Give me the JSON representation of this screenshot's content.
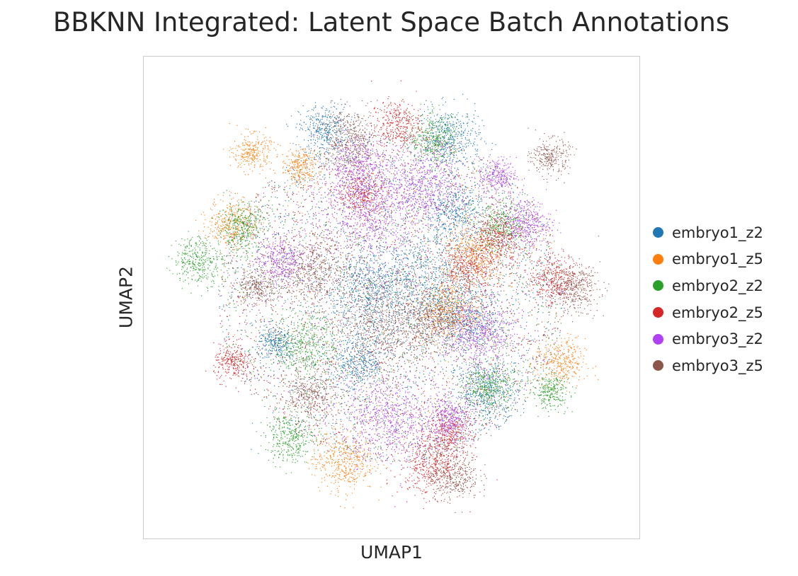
{
  "chart_data": {
    "type": "scatter",
    "title": "BBKNN Integrated: Latent Space Batch Annotations",
    "xlabel": "UMAP1",
    "ylabel": "UMAP2",
    "grid": false,
    "legend_position": "right",
    "series": [
      {
        "name": "embryo1_z2",
        "color": "#1f77b4",
        "clusters": [
          [
            0.36,
            0.86,
            0.04
          ],
          [
            0.62,
            0.84,
            0.05
          ],
          [
            0.56,
            0.53,
            0.09
          ],
          [
            0.66,
            0.45,
            0.05
          ],
          [
            0.26,
            0.4,
            0.03
          ],
          [
            0.43,
            0.36,
            0.05
          ],
          [
            0.7,
            0.3,
            0.05
          ],
          [
            0.45,
            0.52,
            0.07
          ],
          [
            0.63,
            0.68,
            0.05
          ]
        ]
      },
      {
        "name": "embryo1_z5",
        "color": "#ff7f0e",
        "clusters": [
          [
            0.21,
            0.81,
            0.03
          ],
          [
            0.31,
            0.78,
            0.03
          ],
          [
            0.17,
            0.66,
            0.04
          ],
          [
            0.85,
            0.36,
            0.04
          ],
          [
            0.62,
            0.47,
            0.05
          ],
          [
            0.4,
            0.15,
            0.05
          ],
          [
            0.67,
            0.59,
            0.05
          ]
        ]
      },
      {
        "name": "embryo2_z2",
        "color": "#2ca02c",
        "clusters": [
          [
            0.1,
            0.58,
            0.04
          ],
          [
            0.19,
            0.65,
            0.04
          ],
          [
            0.59,
            0.84,
            0.04
          ],
          [
            0.73,
            0.65,
            0.04
          ],
          [
            0.29,
            0.2,
            0.04
          ],
          [
            0.7,
            0.31,
            0.04
          ],
          [
            0.83,
            0.3,
            0.03
          ],
          [
            0.32,
            0.4,
            0.05
          ]
        ]
      },
      {
        "name": "embryo2_z5",
        "color": "#d62728",
        "clusters": [
          [
            0.51,
            0.87,
            0.04
          ],
          [
            0.84,
            0.54,
            0.04
          ],
          [
            0.17,
            0.36,
            0.03
          ],
          [
            0.58,
            0.14,
            0.05
          ],
          [
            0.66,
            0.56,
            0.04
          ],
          [
            0.72,
            0.63,
            0.04
          ],
          [
            0.62,
            0.21,
            0.04
          ],
          [
            0.44,
            0.72,
            0.04
          ]
        ]
      },
      {
        "name": "embryo3_z2",
        "color": "#b041f5",
        "clusters": [
          [
            0.46,
            0.68,
            0.08
          ],
          [
            0.57,
            0.74,
            0.06
          ],
          [
            0.72,
            0.76,
            0.03
          ],
          [
            0.78,
            0.66,
            0.04
          ],
          [
            0.27,
            0.58,
            0.04
          ],
          [
            0.49,
            0.24,
            0.07
          ],
          [
            0.68,
            0.42,
            0.06
          ],
          [
            0.43,
            0.78,
            0.05
          ],
          [
            0.62,
            0.24,
            0.04
          ]
        ]
      },
      {
        "name": "embryo3_z5",
        "color": "#8c564b",
        "clusters": [
          [
            0.41,
            0.84,
            0.05
          ],
          [
            0.83,
            0.8,
            0.03
          ],
          [
            0.88,
            0.52,
            0.04
          ],
          [
            0.34,
            0.56,
            0.06
          ],
          [
            0.48,
            0.44,
            0.08
          ],
          [
            0.63,
            0.12,
            0.04
          ],
          [
            0.22,
            0.52,
            0.03
          ],
          [
            0.59,
            0.46,
            0.05
          ],
          [
            0.33,
            0.29,
            0.04
          ]
        ]
      }
    ]
  }
}
